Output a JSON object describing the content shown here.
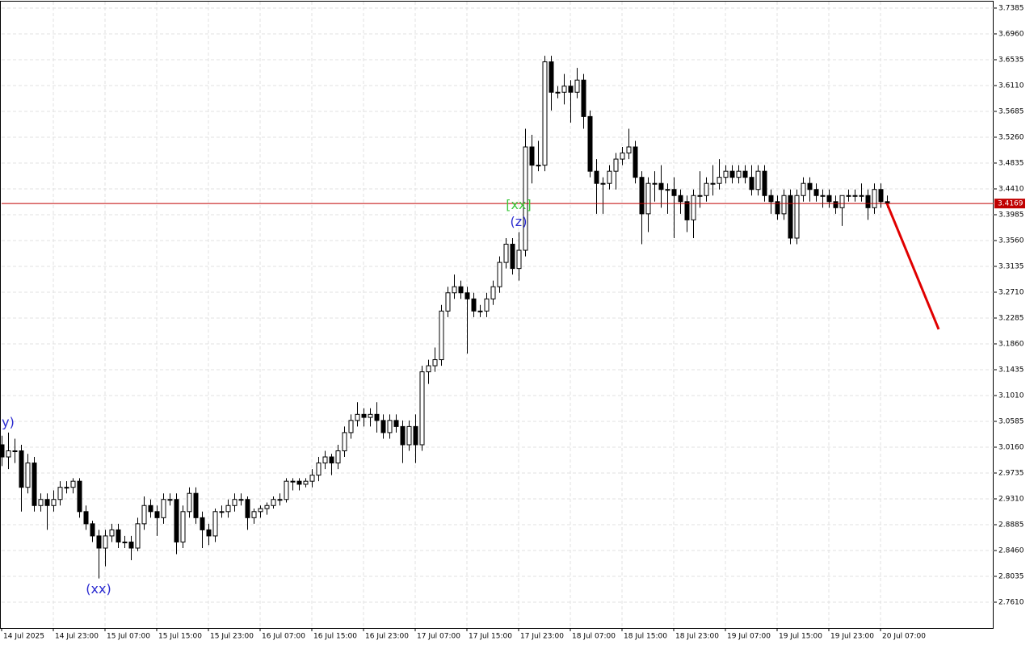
{
  "chart_data": {
    "type": "candlestick",
    "x": [
      "14 Jul 15:00",
      "14 Jul 16:00",
      "14 Jul 17:00",
      "14 Jul 18:00",
      "14 Jul 19:00",
      "14 Jul 20:00",
      "14 Jul 21:00",
      "14 Jul 22:00",
      "14 Jul 23:00",
      "15 Jul 00:00",
      "15 Jul 01:00",
      "15 Jul 02:00",
      "15 Jul 03:00",
      "15 Jul 04:00",
      "15 Jul 05:00",
      "15 Jul 06:00",
      "15 Jul 07:00",
      "15 Jul 08:00",
      "15 Jul 09:00",
      "15 Jul 10:00",
      "15 Jul 11:00",
      "15 Jul 12:00",
      "15 Jul 13:00",
      "15 Jul 14:00",
      "15 Jul 15:00",
      "15 Jul 16:00",
      "15 Jul 17:00",
      "15 Jul 18:00",
      "15 Jul 19:00",
      "15 Jul 20:00",
      "15 Jul 21:00",
      "15 Jul 22:00",
      "15 Jul 23:00",
      "16 Jul 00:00",
      "16 Jul 01:00",
      "16 Jul 02:00",
      "16 Jul 03:00",
      "16 Jul 04:00",
      "16 Jul 05:00",
      "16 Jul 06:00",
      "16 Jul 07:00",
      "16 Jul 08:00",
      "16 Jul 09:00",
      "16 Jul 10:00",
      "16 Jul 11:00",
      "16 Jul 12:00",
      "16 Jul 13:00",
      "16 Jul 14:00",
      "16 Jul 15:00",
      "16 Jul 16:00",
      "16 Jul 17:00",
      "16 Jul 18:00",
      "16 Jul 19:00",
      "16 Jul 20:00",
      "16 Jul 21:00",
      "16 Jul 22:00",
      "16 Jul 23:00",
      "17 Jul 00:00",
      "17 Jul 01:00",
      "17 Jul 02:00",
      "17 Jul 03:00",
      "17 Jul 04:00",
      "17 Jul 05:00",
      "17 Jul 06:00",
      "17 Jul 07:00",
      "17 Jul 08:00",
      "17 Jul 09:00",
      "17 Jul 10:00",
      "17 Jul 11:00",
      "17 Jul 12:00",
      "17 Jul 13:00",
      "17 Jul 14:00",
      "17 Jul 15:00",
      "17 Jul 16:00",
      "17 Jul 17:00",
      "17 Jul 18:00",
      "17 Jul 19:00",
      "17 Jul 20:00",
      "17 Jul 21:00",
      "17 Jul 22:00",
      "17 Jul 23:00",
      "18 Jul 00:00",
      "18 Jul 01:00",
      "18 Jul 02:00",
      "18 Jul 03:00",
      "18 Jul 04:00",
      "18 Jul 05:00",
      "18 Jul 06:00",
      "18 Jul 07:00",
      "18 Jul 08:00",
      "18 Jul 09:00",
      "18 Jul 10:00",
      "18 Jul 11:00",
      "18 Jul 12:00",
      "18 Jul 13:00",
      "18 Jul 14:00",
      "18 Jul 15:00",
      "18 Jul 16:00",
      "18 Jul 17:00",
      "18 Jul 18:00",
      "18 Jul 19:00",
      "18 Jul 20:00",
      "18 Jul 21:00",
      "18 Jul 22:00",
      "18 Jul 23:00",
      "19 Jul 00:00",
      "19 Jul 01:00",
      "19 Jul 02:00",
      "19 Jul 03:00",
      "19 Jul 04:00",
      "19 Jul 05:00",
      "19 Jul 06:00",
      "19 Jul 07:00",
      "19 Jul 08:00",
      "19 Jul 09:00",
      "19 Jul 10:00",
      "19 Jul 11:00",
      "19 Jul 12:00",
      "19 Jul 13:00",
      "19 Jul 14:00",
      "19 Jul 15:00",
      "19 Jul 16:00",
      "19 Jul 17:00",
      "19 Jul 18:00",
      "19 Jul 19:00",
      "19 Jul 20:00",
      "19 Jul 21:00",
      "19 Jul 22:00",
      "19 Jul 23:00",
      "20 Jul 00:00",
      "20 Jul 01:00",
      "20 Jul 02:00",
      "20 Jul 03:00",
      "20 Jul 04:00",
      "20 Jul 05:00",
      "20 Jul 06:00",
      "20 Jul 07:00",
      "20 Jul 08:00"
    ],
    "open": [
      3.02,
      3.0,
      3.01,
      3.01,
      2.95,
      2.99,
      2.92,
      2.93,
      2.92,
      2.93,
      2.95,
      2.95,
      2.96,
      2.91,
      2.89,
      2.87,
      2.85,
      2.87,
      2.88,
      2.86,
      2.86,
      2.85,
      2.89,
      2.92,
      2.91,
      2.9,
      2.93,
      2.93,
      2.86,
      2.91,
      2.94,
      2.9,
      2.88,
      2.87,
      2.91,
      2.91,
      2.92,
      2.93,
      2.93,
      2.9,
      2.91,
      2.915,
      2.92,
      2.93,
      2.93,
      2.96,
      2.96,
      2.955,
      2.96,
      2.97,
      2.99,
      3.0,
      2.99,
      3.01,
      3.04,
      3.06,
      3.07,
      3.065,
      3.07,
      3.06,
      3.04,
      3.06,
      3.05,
      3.02,
      3.05,
      3.02,
      3.14,
      3.15,
      3.16,
      3.24,
      3.27,
      3.28,
      3.27,
      3.26,
      3.24,
      3.24,
      3.26,
      3.28,
      3.32,
      3.35,
      3.31,
      3.34,
      3.51,
      3.48,
      3.48,
      3.65,
      3.6,
      3.6,
      3.61,
      3.6,
      3.62,
      3.56,
      3.47,
      3.45,
      3.45,
      3.47,
      3.49,
      3.5,
      3.51,
      3.46,
      3.4,
      3.45,
      3.45,
      3.44,
      3.44,
      3.43,
      3.42,
      3.39,
      3.43,
      3.43,
      3.45,
      3.45,
      3.46,
      3.47,
      3.46,
      3.47,
      3.46,
      3.44,
      3.47,
      3.43,
      3.42,
      3.4,
      3.43,
      3.36,
      3.43,
      3.45,
      3.44,
      3.43,
      3.43,
      3.42,
      3.41,
      3.43,
      3.43,
      3.43,
      3.43,
      3.41,
      3.44,
      3.42
    ],
    "high": [
      3.035,
      3.04,
      3.03,
      3.02,
      3.005,
      3.0,
      2.94,
      2.94,
      2.945,
      2.96,
      2.96,
      2.965,
      2.965,
      2.92,
      2.895,
      2.88,
      2.88,
      2.89,
      2.89,
      2.87,
      2.87,
      2.9,
      2.935,
      2.93,
      2.92,
      2.94,
      2.94,
      2.94,
      2.92,
      2.95,
      2.95,
      2.91,
      2.89,
      2.915,
      2.92,
      2.93,
      2.94,
      2.94,
      2.935,
      2.915,
      2.92,
      2.925,
      2.935,
      2.94,
      2.965,
      2.965,
      2.965,
      2.965,
      2.98,
      3.0,
      3.01,
      3.005,
      3.02,
      3.05,
      3.07,
      3.09,
      3.08,
      3.08,
      3.09,
      3.07,
      3.07,
      3.07,
      3.06,
      3.06,
      3.07,
      3.15,
      3.16,
      3.18,
      3.25,
      3.28,
      3.3,
      3.29,
      3.28,
      3.27,
      3.25,
      3.27,
      3.29,
      3.33,
      3.36,
      3.36,
      3.37,
      3.54,
      3.53,
      3.52,
      3.66,
      3.66,
      3.61,
      3.63,
      3.62,
      3.64,
      3.63,
      3.57,
      3.49,
      3.46,
      3.48,
      3.5,
      3.51,
      3.54,
      3.52,
      3.47,
      3.46,
      3.47,
      3.48,
      3.45,
      3.46,
      3.44,
      3.43,
      3.44,
      3.47,
      3.46,
      3.48,
      3.49,
      3.48,
      3.48,
      3.48,
      3.48,
      3.48,
      3.48,
      3.48,
      3.44,
      3.43,
      3.44,
      3.44,
      3.44,
      3.46,
      3.46,
      3.45,
      3.44,
      3.44,
      3.43,
      3.43,
      3.44,
      3.44,
      3.45,
      3.44,
      3.45,
      3.45,
      3.43
    ],
    "low": [
      2.985,
      2.98,
      2.99,
      2.91,
      2.94,
      2.91,
      2.91,
      2.88,
      2.91,
      2.92,
      2.94,
      2.94,
      2.9,
      2.88,
      2.86,
      2.8,
      2.82,
      2.86,
      2.85,
      2.85,
      2.83,
      2.845,
      2.88,
      2.9,
      2.87,
      2.89,
      2.92,
      2.84,
      2.85,
      2.9,
      2.89,
      2.85,
      2.855,
      2.86,
      2.9,
      2.9,
      2.91,
      2.92,
      2.88,
      2.89,
      2.9,
      2.905,
      2.915,
      2.92,
      2.925,
      2.945,
      2.945,
      2.95,
      2.95,
      2.96,
      2.98,
      2.97,
      2.98,
      3.0,
      3.03,
      3.05,
      3.05,
      3.05,
      3.04,
      3.03,
      3.03,
      3.04,
      2.99,
      3.01,
      2.99,
      3.01,
      3.12,
      3.14,
      3.15,
      3.23,
      3.26,
      3.26,
      3.17,
      3.23,
      3.23,
      3.23,
      3.25,
      3.27,
      3.31,
      3.3,
      3.29,
      3.33,
      3.45,
      3.47,
      3.47,
      3.57,
      3.59,
      3.58,
      3.55,
      3.59,
      3.54,
      3.46,
      3.4,
      3.4,
      3.44,
      3.44,
      3.48,
      3.49,
      3.45,
      3.35,
      3.37,
      3.42,
      3.41,
      3.4,
      3.36,
      3.4,
      3.37,
      3.36,
      3.41,
      3.42,
      3.43,
      3.44,
      3.45,
      3.45,
      3.45,
      3.45,
      3.43,
      3.43,
      3.42,
      3.4,
      3.39,
      3.39,
      3.35,
      3.35,
      3.42,
      3.42,
      3.42,
      3.41,
      3.41,
      3.4,
      3.38,
      3.42,
      3.42,
      3.42,
      3.39,
      3.4,
      3.41,
      3.41
    ],
    "close": [
      3.0,
      3.01,
      3.01,
      2.95,
      2.99,
      2.92,
      2.93,
      2.92,
      2.93,
      2.95,
      2.95,
      2.96,
      2.91,
      2.89,
      2.87,
      2.85,
      2.87,
      2.88,
      2.86,
      2.86,
      2.85,
      2.89,
      2.92,
      2.91,
      2.9,
      2.93,
      2.93,
      2.86,
      2.91,
      2.94,
      2.9,
      2.88,
      2.87,
      2.91,
      2.91,
      2.92,
      2.93,
      2.93,
      2.9,
      2.91,
      2.915,
      2.92,
      2.93,
      2.93,
      2.96,
      2.96,
      2.955,
      2.96,
      2.97,
      2.99,
      3.0,
      2.99,
      3.01,
      3.04,
      3.06,
      3.07,
      3.065,
      3.07,
      3.06,
      3.04,
      3.06,
      3.05,
      3.02,
      3.05,
      3.02,
      3.14,
      3.15,
      3.16,
      3.24,
      3.27,
      3.28,
      3.27,
      3.26,
      3.24,
      3.24,
      3.26,
      3.28,
      3.32,
      3.35,
      3.31,
      3.34,
      3.51,
      3.48,
      3.48,
      3.65,
      3.6,
      3.6,
      3.61,
      3.6,
      3.62,
      3.56,
      3.47,
      3.45,
      3.45,
      3.47,
      3.49,
      3.5,
      3.51,
      3.46,
      3.4,
      3.45,
      3.45,
      3.44,
      3.44,
      3.43,
      3.42,
      3.39,
      3.43,
      3.43,
      3.45,
      3.45,
      3.46,
      3.47,
      3.46,
      3.47,
      3.46,
      3.44,
      3.47,
      3.43,
      3.42,
      3.4,
      3.43,
      3.36,
      3.43,
      3.45,
      3.44,
      3.43,
      3.43,
      3.42,
      3.41,
      3.43,
      3.43,
      3.43,
      3.43,
      3.41,
      3.44,
      3.42,
      3.417
    ],
    "up_color": "#ffffff",
    "down_color": "#000000",
    "ylim": [
      2.7185,
      3.7491
    ],
    "yticks": [
      3.7385,
      {
        "value": 3.696,
        "label": "3.6960"
      },
      3.6535,
      {
        "value": 3.611,
        "label": "3.6110"
      },
      3.5685,
      {
        "value": 3.526,
        "label": "3.5260"
      },
      3.4835,
      {
        "value": 3.441,
        "label": "3.4410"
      },
      3.3985,
      {
        "value": 3.356,
        "label": "3.3560"
      },
      3.3135,
      {
        "value": 3.271,
        "label": "3.2710"
      },
      3.2285,
      {
        "value": 3.186,
        "label": "3.1860"
      },
      3.1435,
      {
        "value": 3.101,
        "label": "3.1010"
      },
      3.0585,
      {
        "value": 3.016,
        "label": "3.0160"
      },
      2.9735,
      {
        "value": 2.931,
        "label": "2.9310"
      },
      2.8885,
      {
        "value": 2.846,
        "label": "2.8460"
      },
      2.8035,
      {
        "value": 2.761,
        "label": "2.7610"
      }
    ],
    "xticks": [
      {
        "value": "14 Jul 15:00",
        "label": "14 Jul 2025"
      },
      "14 Jul 23:00",
      "15 Jul 07:00",
      "15 Jul 15:00",
      "15 Jul 23:00",
      "16 Jul 07:00",
      "16 Jul 15:00",
      "16 Jul 23:00",
      "17 Jul 07:00",
      "17 Jul 15:00",
      "17 Jul 23:00",
      "18 Jul 07:00",
      "18 Jul 15:00",
      "18 Jul 23:00",
      "19 Jul 07:00",
      "19 Jul 15:00",
      "19 Jul 23:00",
      "20 Jul 07:00"
    ],
    "grid": true,
    "current_price": 3.4169,
    "current_price_color": "#c00000",
    "forecast": {
      "x": [
        "20 Jul 08:00",
        "20 Jul 16:00"
      ],
      "values": [
        3.417,
        3.21
      ],
      "color": "#e00000"
    },
    "annotations": [
      {
        "text": "y)",
        "x": "14 Jul 16:00",
        "position": "above",
        "color": "#2a2ad0"
      },
      {
        "text": "(xx)",
        "x": "15 Jul 06:00",
        "position": "below",
        "color": "#2a2ad0"
      },
      {
        "text": "(z)",
        "x": "17 Jul 23:00",
        "position": "above",
        "color": "#2a2ad0"
      },
      {
        "text": "[xx]",
        "x": "17 Jul 23:00",
        "position": "above",
        "color": "#3cc83c"
      }
    ]
  }
}
